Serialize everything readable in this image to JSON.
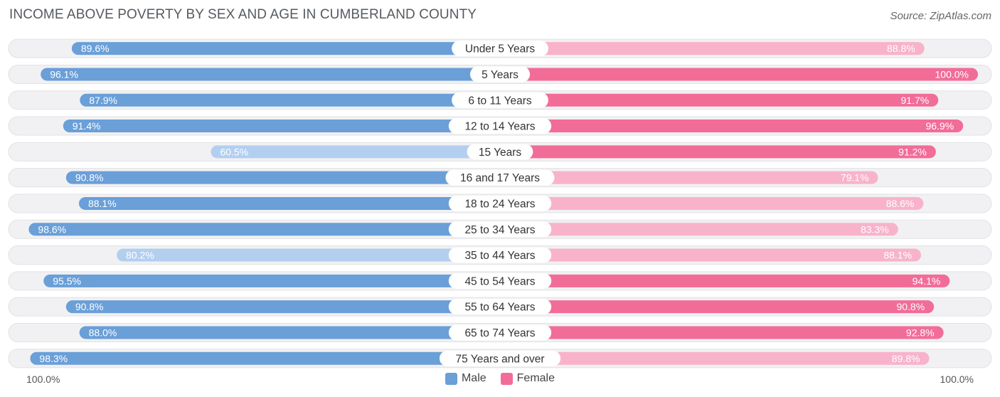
{
  "header": {
    "title": "INCOME ABOVE POVERTY BY SEX AND AGE IN CUMBERLAND COUNTY",
    "source": "Source: ZipAtlas.com"
  },
  "axis": {
    "left_label": "100.0%",
    "right_label": "100.0%"
  },
  "legend": {
    "male_label": "Male",
    "female_label": "Female"
  },
  "colors": {
    "male_strong": "#6a9fd8",
    "male_light": "#b3cff0",
    "female_strong": "#f26c98",
    "female_light": "#f8b3cb",
    "track": "#f1f1f3"
  },
  "chart_data": {
    "type": "bar",
    "title": "INCOME ABOVE POVERTY BY SEX AND AGE IN CUMBERLAND COUNTY",
    "categories": [
      "Under 5 Years",
      "5 Years",
      "6 to 11 Years",
      "12 to 14 Years",
      "15 Years",
      "16 and 17 Years",
      "18 to 24 Years",
      "25 to 34 Years",
      "35 to 44 Years",
      "45 to 54 Years",
      "55 to 64 Years",
      "65 to 74 Years",
      "75 Years and over"
    ],
    "series": [
      {
        "name": "Male",
        "values": [
          89.6,
          96.1,
          87.9,
          91.4,
          60.5,
          90.8,
          88.1,
          98.6,
          80.2,
          95.5,
          90.8,
          88.0,
          98.3
        ]
      },
      {
        "name": "Female",
        "values": [
          88.8,
          100.0,
          91.7,
          96.9,
          91.2,
          79.1,
          88.6,
          83.3,
          88.1,
          94.1,
          90.8,
          92.8,
          89.8
        ]
      }
    ],
    "value_labels": {
      "male": [
        "89.6%",
        "96.1%",
        "87.9%",
        "91.4%",
        "60.5%",
        "90.8%",
        "88.1%",
        "98.6%",
        "80.2%",
        "95.5%",
        "90.8%",
        "88.0%",
        "98.3%"
      ],
      "female": [
        "88.8%",
        "100.0%",
        "91.7%",
        "96.9%",
        "91.2%",
        "79.1%",
        "88.6%",
        "83.3%",
        "88.1%",
        "94.1%",
        "90.8%",
        "92.8%",
        "89.8%"
      ]
    },
    "xlim": [
      0,
      100
    ],
    "legend_position": "bottom-center",
    "orientation": "horizontal-diverging"
  }
}
